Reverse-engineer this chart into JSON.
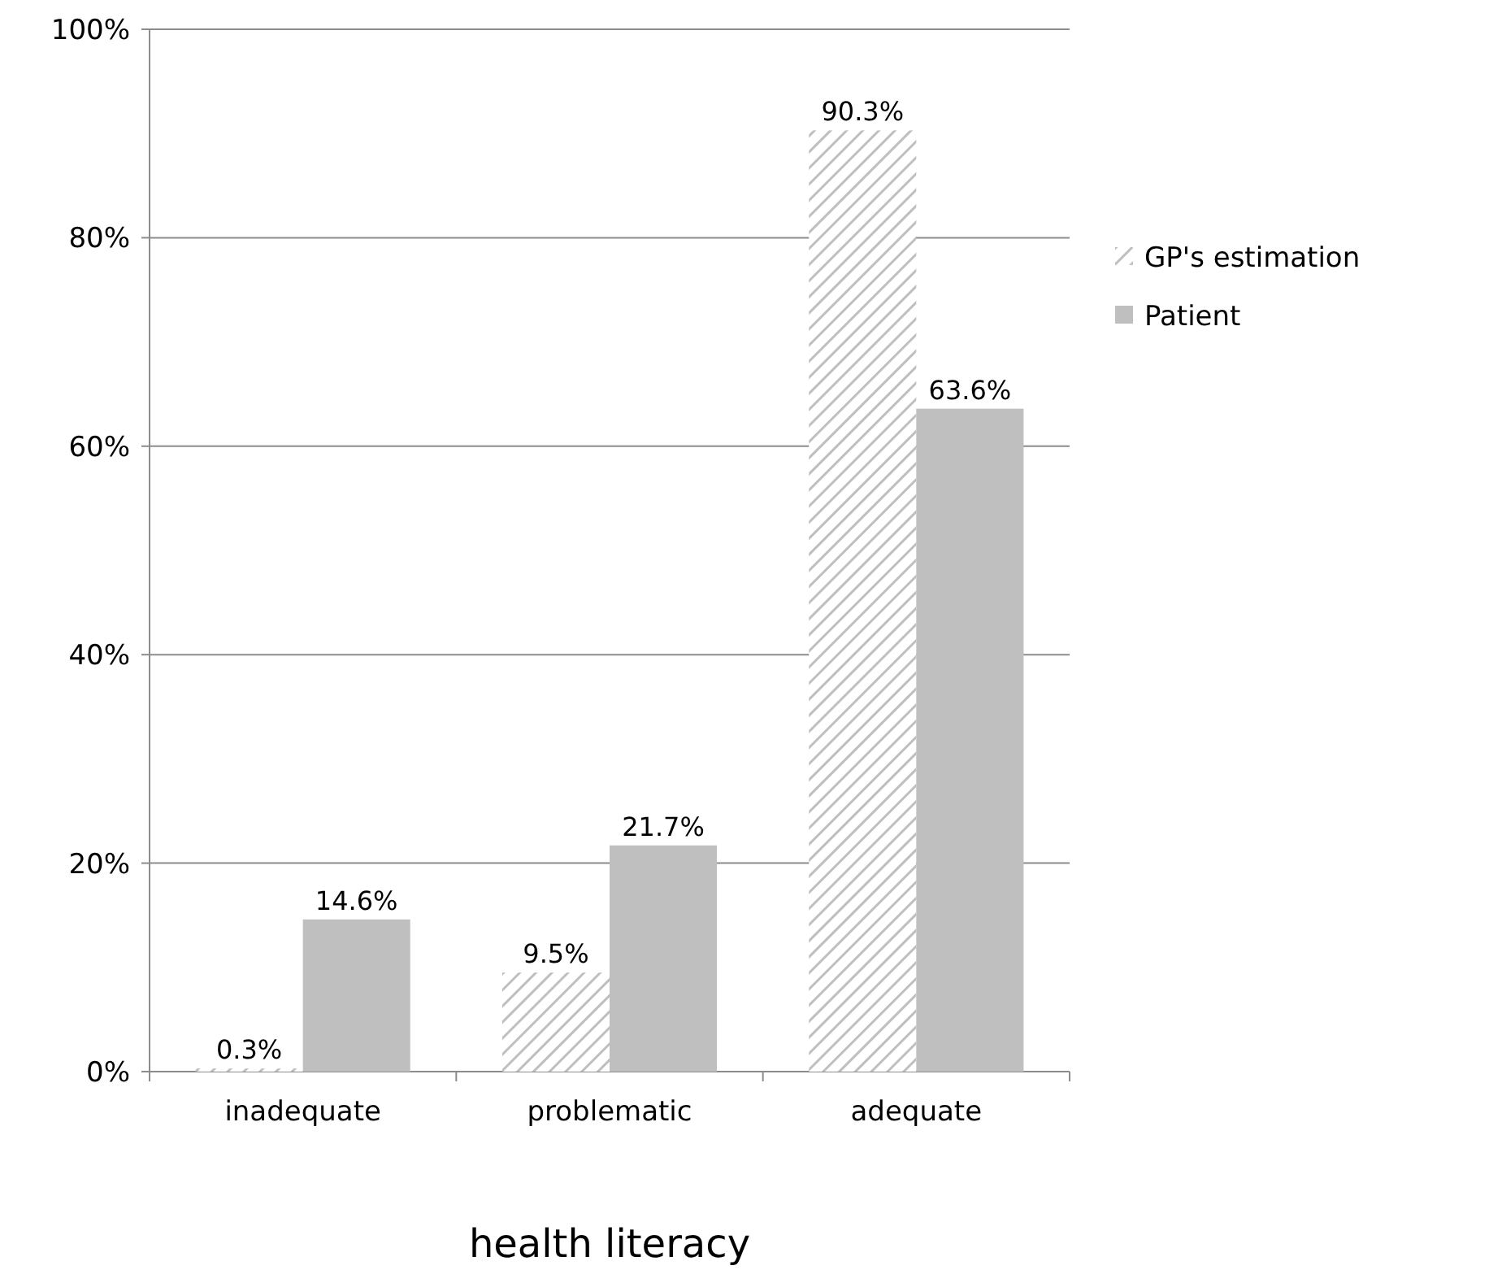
{
  "chart_data": {
    "type": "bar",
    "xlabel": "health literacy",
    "categories": [
      "inadequate",
      "problematic",
      "adequate"
    ],
    "series": [
      {
        "name": "GP's estimation",
        "color": "#bfbfbf",
        "values": [
          0.3,
          9.5,
          90.3
        ],
        "value_labels": [
          "0.3%",
          "9.5%",
          "90.3%"
        ]
      },
      {
        "name": "Patient",
        "color": "#bfbfbf",
        "values": [
          14.6,
          21.7,
          63.6
        ],
        "value_labels": [
          "14.6%",
          "21.7%",
          "63.6%"
        ]
      }
    ],
    "ylim": [
      0,
      100
    ],
    "yticks": [
      {
        "value": 0,
        "label": "0%"
      },
      {
        "value": 20,
        "label": "20%"
      },
      {
        "value": 40,
        "label": "40%"
      },
      {
        "value": 60,
        "label": "60%"
      },
      {
        "value": 80,
        "label": "80%"
      },
      {
        "value": 100,
        "label": "100%"
      }
    ],
    "grid": "y",
    "legend": "right"
  }
}
